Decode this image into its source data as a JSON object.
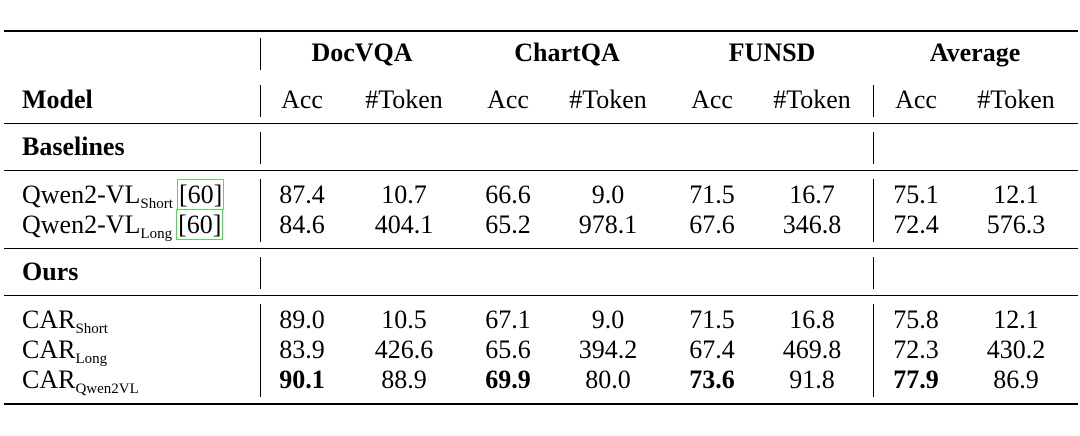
{
  "table": {
    "groups": [
      "DocVQA",
      "ChartQA",
      "FUNSD",
      "Average"
    ],
    "model_header": "Model",
    "sub_headers": [
      "Acc",
      "#Token",
      "Acc",
      "#Token",
      "Acc",
      "#Token",
      "Acc",
      "#Token"
    ],
    "sections": [
      {
        "title": "Baselines",
        "rows": [
          {
            "base": "Qwen2-VL",
            "sub": "Short",
            "cite": "[60]",
            "values": [
              "87.4",
              "10.7",
              "66.6",
              "9.0",
              "71.5",
              "16.7",
              "75.1",
              "12.1"
            ]
          },
          {
            "base": "Qwen2-VL",
            "sub": "Long",
            "cite": "[60]",
            "values": [
              "84.6",
              "404.1",
              "65.2",
              "978.1",
              "67.6",
              "346.8",
              "72.4",
              "576.3"
            ]
          }
        ]
      },
      {
        "title": "Ours",
        "rows": [
          {
            "base": "CAR",
            "sub": "Short",
            "cite": "",
            "values": [
              "89.0",
              "10.5",
              "67.1",
              "9.0",
              "71.5",
              "16.8",
              "75.8",
              "12.1"
            ]
          },
          {
            "base": "CAR",
            "sub": "Long",
            "cite": "",
            "values": [
              "83.9",
              "426.6",
              "65.6",
              "394.2",
              "67.4",
              "469.8",
              "72.3",
              "430.2"
            ]
          },
          {
            "base": "CAR",
            "sub": "Qwen2VL",
            "cite": "",
            "values": [
              "90.1",
              "88.9",
              "69.9",
              "80.0",
              "73.6",
              "91.8",
              "77.9",
              "86.9"
            ]
          }
        ]
      }
    ]
  }
}
